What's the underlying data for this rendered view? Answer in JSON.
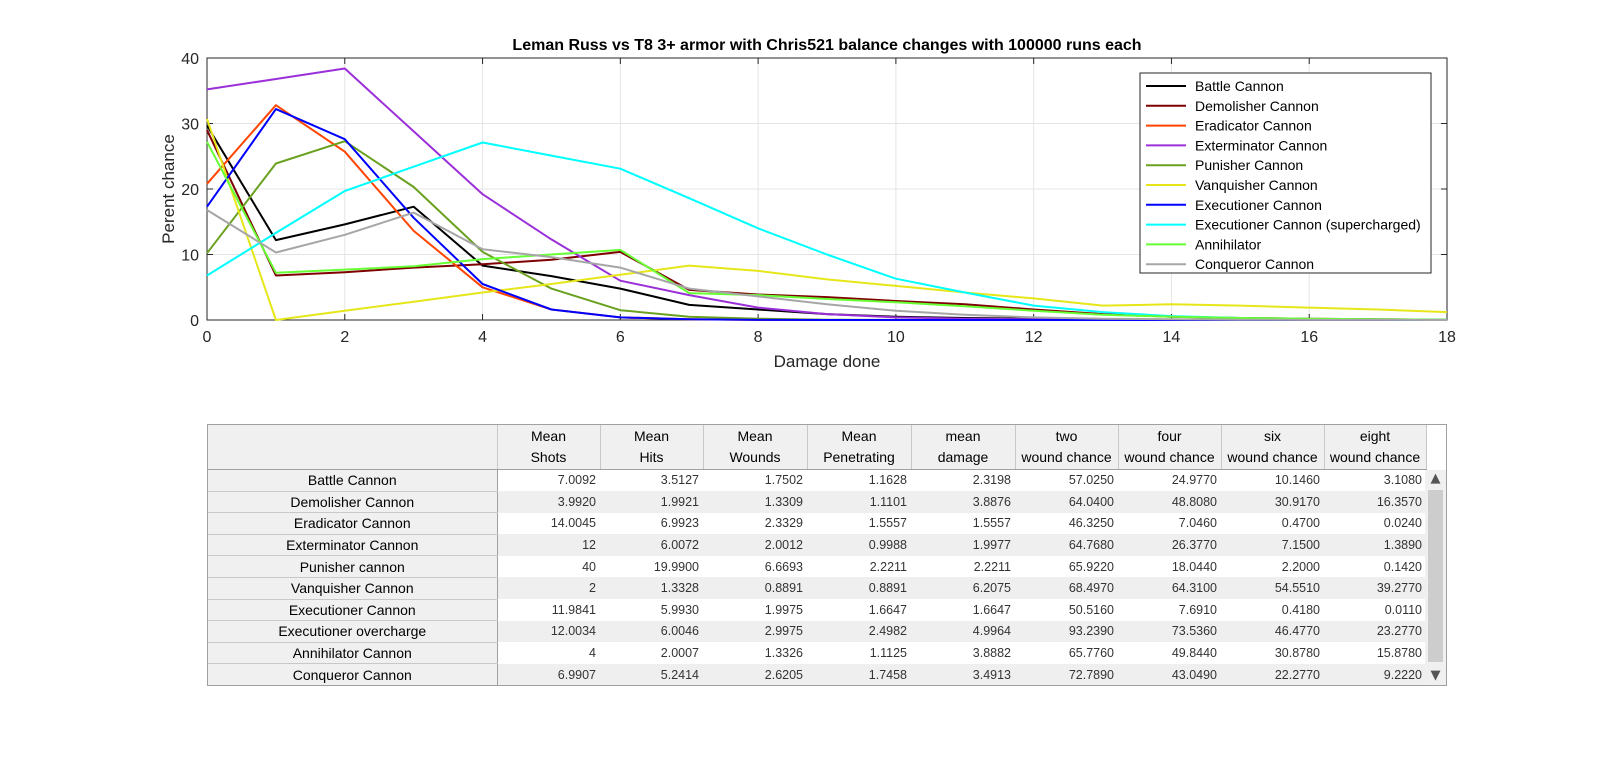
{
  "chart_data": {
    "type": "line",
    "title": "Leman Russ vs T8 3+ armor with Chris521 balance changes with 100000 runs each",
    "xlabel": "Damage done",
    "ylabel": "Perent chance",
    "xlim": [
      0,
      18
    ],
    "ylim": [
      0,
      40
    ],
    "xticks": [
      0,
      2,
      4,
      6,
      8,
      10,
      12,
      14,
      16,
      18
    ],
    "yticks": [
      0,
      10,
      20,
      30,
      40
    ],
    "grid": true,
    "legend_position": "top-right",
    "series": [
      {
        "name": "Battle Cannon",
        "color": "#000000",
        "x": [
          0,
          1,
          2,
          3,
          4,
          5,
          6,
          7,
          8,
          9,
          10,
          11,
          12,
          13,
          14,
          15,
          16,
          17,
          18
        ],
        "y": [
          29.7,
          12.2,
          14.6,
          17.3,
          8.3,
          6.7,
          4.8,
          2.3,
          1.6,
          0.9,
          0.5,
          0.3,
          0.2,
          0.1,
          0.05,
          0.03,
          0.02,
          0.01,
          0.0
        ]
      },
      {
        "name": "Demolisher Cannon",
        "color": "#7f0000",
        "x": [
          0,
          1,
          2,
          3,
          4,
          5,
          6,
          7,
          8,
          9,
          10,
          11,
          12,
          13,
          14,
          15,
          16,
          17,
          18
        ],
        "y": [
          29.0,
          6.8,
          7.3,
          8.0,
          8.5,
          9.2,
          10.4,
          4.6,
          3.9,
          3.5,
          2.9,
          2.4,
          1.6,
          0.9,
          0.5,
          0.3,
          0.2,
          0.1,
          0.05
        ]
      },
      {
        "name": "Eradicator Cannon",
        "color": "#ff4500",
        "x": [
          0,
          1,
          2,
          3,
          4,
          5,
          6,
          7,
          8,
          9,
          10,
          11,
          12,
          13,
          14,
          15,
          16,
          17,
          18
        ],
        "y": [
          20.8,
          32.8,
          25.7,
          13.6,
          5.0,
          1.6,
          0.4,
          0.1,
          0.02,
          0,
          0,
          0,
          0,
          0,
          0,
          0,
          0,
          0,
          0
        ]
      },
      {
        "name": "Exterminator Cannon",
        "color": "#9b30d9",
        "x": [
          0,
          1,
          2,
          3,
          4,
          5,
          6,
          7,
          8,
          9,
          10,
          11,
          12,
          13,
          14,
          15,
          16,
          17,
          18
        ],
        "y": [
          35.2,
          36.8,
          38.4,
          28.8,
          19.2,
          12.3,
          6.0,
          3.8,
          1.9,
          0.9,
          0.4,
          0.2,
          0.1,
          0.05,
          0.02,
          0.01,
          0,
          0,
          0
        ]
      },
      {
        "name": "Punisher Cannon",
        "color": "#6aa121",
        "x": [
          0,
          1,
          2,
          3,
          4,
          5,
          6,
          7,
          8,
          9,
          10,
          11,
          12,
          13,
          14,
          15,
          16,
          17,
          18
        ],
        "y": [
          10.2,
          23.9,
          27.3,
          20.3,
          10.4,
          4.8,
          1.5,
          0.5,
          0.2,
          0.05,
          0.02,
          0,
          0,
          0,
          0,
          0,
          0,
          0,
          0
        ]
      },
      {
        "name": "Vanquisher Cannon",
        "color": "#e6e619",
        "x": [
          0,
          1,
          2,
          3,
          4,
          5,
          6,
          7,
          8,
          9,
          10,
          11,
          12,
          13,
          14,
          15,
          16,
          17,
          18
        ],
        "y": [
          30.7,
          0.0,
          1.4,
          2.8,
          4.2,
          5.5,
          6.9,
          8.3,
          7.5,
          6.2,
          5.2,
          4.2,
          3.3,
          2.2,
          2.4,
          2.2,
          1.9,
          1.6,
          1.2
        ]
      },
      {
        "name": "Executioner Cannon",
        "color": "#0000ff",
        "x": [
          0,
          1,
          2,
          3,
          4,
          5,
          6,
          7,
          8,
          9,
          10,
          11,
          12,
          13,
          14,
          15,
          16,
          17,
          18
        ],
        "y": [
          17.3,
          32.2,
          27.6,
          15.6,
          5.5,
          1.6,
          0.4,
          0.1,
          0.02,
          0,
          0,
          0,
          0,
          0,
          0,
          0,
          0,
          0,
          0
        ]
      },
      {
        "name": "Executioner Cannon (supercharged)",
        "color": "#00ffff",
        "x": [
          0,
          1,
          2,
          3,
          4,
          5,
          6,
          7,
          8,
          9,
          10,
          11,
          12,
          13,
          14,
          15,
          16,
          17,
          18
        ],
        "y": [
          6.8,
          13.3,
          19.7,
          23.4,
          27.1,
          25.1,
          23.1,
          18.6,
          14.0,
          10.0,
          6.3,
          4.2,
          2.2,
          1.2,
          0.6,
          0.3,
          0.15,
          0.07,
          0.03
        ]
      },
      {
        "name": "Annihilator",
        "color": "#66ff33",
        "x": [
          0,
          1,
          2,
          3,
          4,
          5,
          6,
          7,
          8,
          9,
          10,
          11,
          12,
          13,
          14,
          15,
          16,
          17,
          18
        ],
        "y": [
          27.2,
          7.2,
          7.7,
          8.2,
          9.3,
          10.0,
          10.7,
          4.1,
          3.8,
          3.2,
          2.7,
          2.1,
          1.4,
          0.8,
          0.5,
          0.3,
          0.2,
          0.1,
          0.05
        ]
      },
      {
        "name": "Conqueror Cannon",
        "color": "#a6a6a6",
        "x": [
          0,
          1,
          2,
          3,
          4,
          5,
          6,
          7,
          8,
          9,
          10,
          11,
          12,
          13,
          14,
          15,
          16,
          17,
          18
        ],
        "y": [
          16.8,
          10.3,
          13.0,
          16.4,
          10.8,
          9.6,
          8.0,
          4.8,
          3.6,
          2.4,
          1.4,
          0.8,
          0.4,
          0.2,
          0.1,
          0.05,
          0.02,
          0.01,
          0
        ]
      }
    ]
  },
  "table": {
    "headers": [
      [
        "Mean",
        "Shots"
      ],
      [
        "Mean",
        "Hits"
      ],
      [
        "Mean",
        "Wounds"
      ],
      [
        "Mean",
        "Penetrating"
      ],
      [
        "mean",
        "damage"
      ],
      [
        "two",
        "wound chance"
      ],
      [
        "four",
        "wound chance"
      ],
      [
        "six",
        "wound chance"
      ],
      [
        "eight",
        "wound chance"
      ]
    ],
    "rows": [
      {
        "name": "Battle Cannon",
        "values": [
          "7.0092",
          "3.5127",
          "1.7502",
          "1.1628",
          "2.3198",
          "57.0250",
          "24.9770",
          "10.1460",
          "3.1080"
        ]
      },
      {
        "name": "Demolisher Cannon",
        "values": [
          "3.9920",
          "1.9921",
          "1.3309",
          "1.1101",
          "3.8876",
          "64.0400",
          "48.8080",
          "30.9170",
          "16.3570"
        ]
      },
      {
        "name": "Eradicator Cannon",
        "values": [
          "14.0045",
          "6.9923",
          "2.3329",
          "1.5557",
          "1.5557",
          "46.3250",
          "7.0460",
          "0.4700",
          "0.0240"
        ]
      },
      {
        "name": "Exterminator Cannon",
        "values": [
          "12",
          "6.0072",
          "2.0012",
          "0.9988",
          "1.9977",
          "64.7680",
          "26.3770",
          "7.1500",
          "1.3890"
        ]
      },
      {
        "name": "Punisher cannon",
        "values": [
          "40",
          "19.9900",
          "6.6693",
          "2.2211",
          "2.2211",
          "65.9220",
          "18.0440",
          "2.2000",
          "0.1420"
        ]
      },
      {
        "name": "Vanquisher Cannon",
        "values": [
          "2",
          "1.3328",
          "0.8891",
          "0.8891",
          "6.2075",
          "68.4970",
          "64.3100",
          "54.5510",
          "39.2770"
        ]
      },
      {
        "name": "Executioner Cannon",
        "values": [
          "11.9841",
          "5.9930",
          "1.9975",
          "1.6647",
          "1.6647",
          "50.5160",
          "7.6910",
          "0.4180",
          "0.0110"
        ]
      },
      {
        "name": "Executioner overcharge",
        "values": [
          "12.0034",
          "6.0046",
          "2.9975",
          "2.4982",
          "4.9964",
          "93.2390",
          "73.5360",
          "46.4770",
          "23.2770"
        ]
      },
      {
        "name": "Annihilator Cannon",
        "values": [
          "4",
          "2.0007",
          "1.3326",
          "1.1125",
          "3.8882",
          "65.7760",
          "49.8440",
          "30.8780",
          "15.8780"
        ]
      },
      {
        "name": "Conqueror Cannon",
        "values": [
          "6.9907",
          "5.2414",
          "2.6205",
          "1.7458",
          "3.4913",
          "72.7890",
          "43.0490",
          "22.2770",
          "9.2220"
        ]
      }
    ]
  },
  "icons": {
    "scroll_up": "▲",
    "scroll_down": "▼"
  }
}
